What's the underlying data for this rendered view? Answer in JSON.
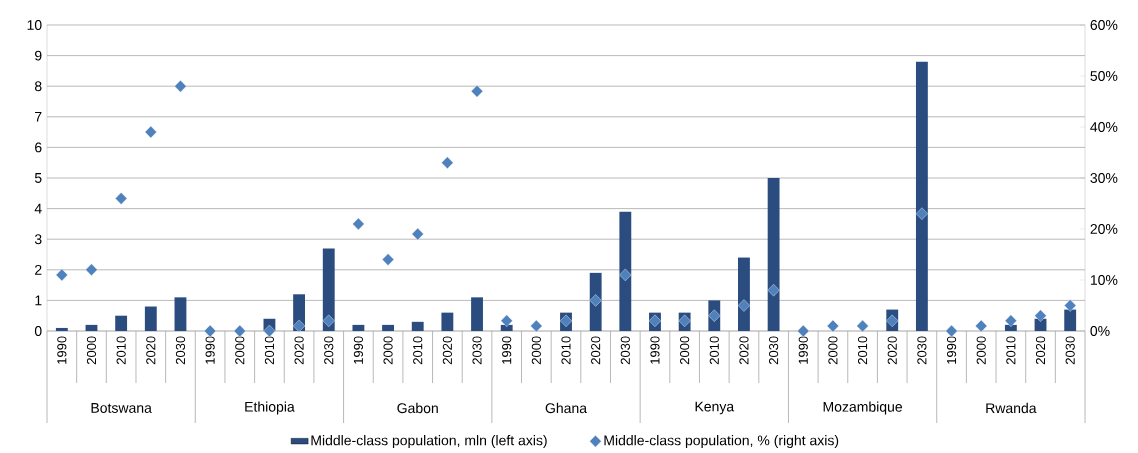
{
  "chart_data": {
    "type": "bar",
    "categories": [
      "1990",
      "2000",
      "2010",
      "2020",
      "2030",
      "1990",
      "2000",
      "2010",
      "2020",
      "2030",
      "1990",
      "2000",
      "2010",
      "2020",
      "2030",
      "1990",
      "2000",
      "2010",
      "2020",
      "2030",
      "1990",
      "2000",
      "2010",
      "2020",
      "2030",
      "1990",
      "2000",
      "2010",
      "2020",
      "2030",
      "1990",
      "2000",
      "2010",
      "2020",
      "2030"
    ],
    "annotations": [
      "Botswana",
      "Ethiopia",
      "Gabon",
      "Ghana",
      "Kenya",
      "Mozambique",
      "Rwanda"
    ],
    "series": [
      {
        "name": "Middle-class population, mln (left axis)",
        "color": "#2b4c7e",
        "values": [
          0.1,
          0.2,
          0.5,
          0.8,
          1.1,
          0,
          0,
          0.4,
          1.2,
          2.7,
          0.2,
          0.2,
          0.3,
          0.6,
          1.1,
          0.2,
          null,
          0.6,
          1.9,
          3.9,
          0.6,
          0.6,
          1.0,
          2.4,
          5.0,
          0,
          0,
          0,
          0.7,
          8.8,
          0,
          0,
          0.2,
          0.4,
          0.7
        ]
      },
      {
        "name": "Middle-class population, % (right axis)",
        "type": "scatter",
        "axis": "y2",
        "color": "#4f81bd",
        "values": [
          11,
          12,
          26,
          39,
          48,
          0,
          0,
          0,
          1,
          2,
          21,
          14,
          19,
          33,
          47,
          2,
          1,
          2,
          6,
          11,
          2,
          2,
          3,
          5,
          8,
          0,
          1,
          1,
          2,
          23,
          0,
          1,
          2,
          3,
          5
        ]
      }
    ],
    "ylim": [
      0,
      10
    ],
    "yticks": [
      0,
      1,
      2,
      3,
      4,
      5,
      6,
      7,
      8,
      9,
      10
    ],
    "y2lim": [
      0,
      60
    ],
    "y2ticks": [
      {
        "value": 0,
        "label": "0%"
      },
      {
        "value": 10,
        "label": "10%"
      },
      {
        "value": 20,
        "label": "20%"
      },
      {
        "value": 30,
        "label": "30%"
      },
      {
        "value": 40,
        "label": "40%"
      },
      {
        "value": 50,
        "label": "50%"
      },
      {
        "value": 60,
        "label": "60%"
      }
    ],
    "grid": "y",
    "legend": "bottom",
    "marker": "diamond"
  }
}
